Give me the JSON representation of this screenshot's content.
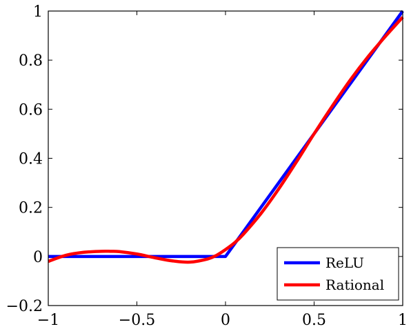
{
  "chart_data": {
    "type": "line",
    "title": "",
    "xlabel": "",
    "ylabel": "",
    "xlim": [
      -1,
      1
    ],
    "ylim": [
      -0.2,
      1
    ],
    "x_ticks": [
      -1,
      -0.5,
      0,
      0.5,
      1
    ],
    "y_ticks": [
      -0.2,
      0,
      0.2,
      0.4,
      0.6,
      0.8,
      1
    ],
    "x_tick_labels": [
      "−1",
      "−0.5",
      "0",
      "0.5",
      "1"
    ],
    "y_tick_labels": [
      "−0.2",
      "0",
      "0.2",
      "0.4",
      "0.6",
      "0.8",
      "1"
    ],
    "grid": false,
    "legend_position": "bottom-right",
    "series": [
      {
        "name": "ReLU",
        "color": "#0000ff",
        "x": [
          -1,
          0,
          1
        ],
        "y": [
          0,
          0,
          1
        ]
      },
      {
        "name": "Rational",
        "color": "#ff0000",
        "x": [
          -1,
          -0.9,
          -0.8,
          -0.7,
          -0.65,
          -0.6,
          -0.5,
          -0.4,
          -0.3,
          -0.2,
          -0.1,
          -0.05,
          0,
          0.05,
          0.1,
          0.2,
          0.3,
          0.4,
          0.5,
          0.6,
          0.7,
          0.8,
          0.9,
          1
        ],
        "y": [
          -0.02,
          0.005,
          0.017,
          0.021,
          0.021,
          0.02,
          0.01,
          -0.005,
          -0.018,
          -0.023,
          -0.01,
          0.005,
          0.028,
          0.055,
          0.09,
          0.175,
          0.275,
          0.385,
          0.5,
          0.61,
          0.715,
          0.81,
          0.895,
          0.975
        ]
      }
    ]
  }
}
